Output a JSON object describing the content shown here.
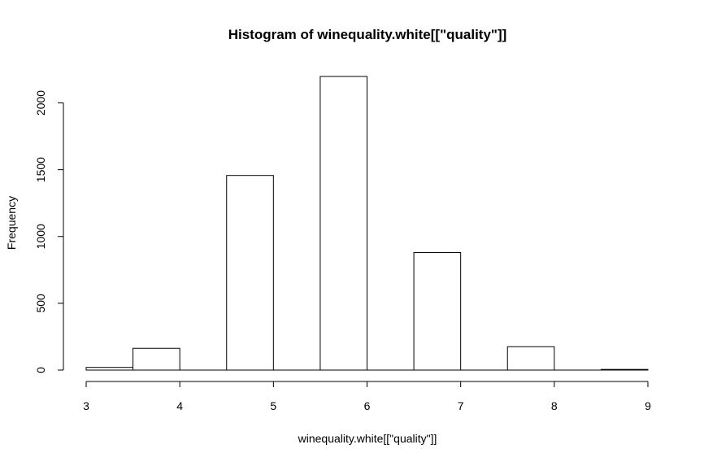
{
  "chart_data": {
    "type": "bar",
    "title": "Histogram of winequality.white[[\"quality\"]]",
    "xlabel": "winequality.white[[\"quality\"]]",
    "ylabel": "Frequency",
    "xlim": [
      3,
      9
    ],
    "ylim": [
      0,
      2198
    ],
    "x_ticks": [
      "3",
      "4",
      "5",
      "6",
      "7",
      "8",
      "9"
    ],
    "y_ticks": [
      "0",
      "500",
      "1000",
      "1500",
      "2000"
    ],
    "bins": [
      {
        "from": 3.0,
        "to": 3.5,
        "count": 20
      },
      {
        "from": 3.5,
        "to": 4.0,
        "count": 163
      },
      {
        "from": 4.0,
        "to": 4.5,
        "count": 0
      },
      {
        "from": 4.5,
        "to": 5.0,
        "count": 1457
      },
      {
        "from": 5.0,
        "to": 5.5,
        "count": 0
      },
      {
        "from": 5.5,
        "to": 6.0,
        "count": 2198
      },
      {
        "from": 6.0,
        "to": 6.5,
        "count": 0
      },
      {
        "from": 6.5,
        "to": 7.0,
        "count": 880
      },
      {
        "from": 7.0,
        "to": 7.5,
        "count": 0
      },
      {
        "from": 7.5,
        "to": 8.0,
        "count": 175
      },
      {
        "from": 8.0,
        "to": 8.5,
        "count": 0
      },
      {
        "from": 8.5,
        "to": 9.0,
        "count": 5
      }
    ],
    "colors": {
      "bar_fill": "#ffffff",
      "bar_stroke": "#000000"
    }
  }
}
